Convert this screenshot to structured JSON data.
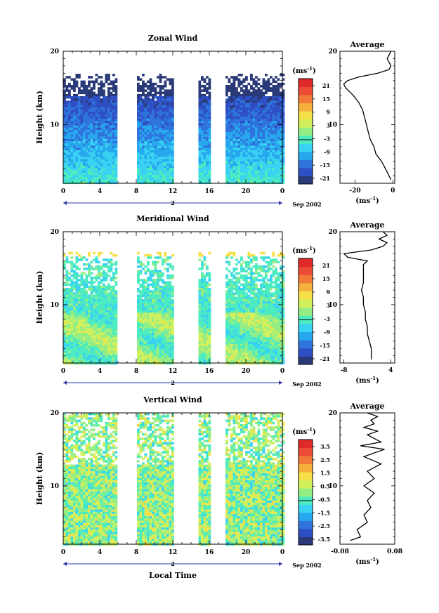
{
  "chart_data": [
    {
      "type": "heatmap",
      "title": "Zonal Wind",
      "ylabel": "Height (km)",
      "xlabel": "",
      "date_label": "Sep 2002",
      "day_marker": "2",
      "x_ticks": [
        "0",
        "4",
        "8",
        "12",
        "16",
        "20",
        "0"
      ],
      "y_ticks": [
        "10",
        "20"
      ],
      "xlim": [
        0,
        24
      ],
      "ylim": [
        2,
        20
      ],
      "colorbar": {
        "unit_base": "(ms",
        "unit_exp": "-1",
        "unit_close": ")",
        "levels": [
          "21",
          "15",
          "9",
          "3",
          "-3",
          "-9",
          "-15",
          "-21"
        ],
        "range": [
          -24,
          24
        ]
      },
      "average": {
        "title": "Average",
        "xlabel_base": "(ms",
        "xlabel_exp": "-1",
        "xlabel_close": ")",
        "x_ticks": [
          "-20",
          "0"
        ],
        "xlim": [
          -28,
          1
        ],
        "heights": [
          2.5,
          3,
          4,
          5,
          6,
          7,
          8,
          9,
          10,
          11,
          12,
          13,
          14,
          15,
          15.5,
          16,
          16.5,
          17,
          17.5,
          18,
          18.5,
          19,
          19.5,
          20
        ],
        "values": [
          -1,
          -2,
          -4,
          -6,
          -9,
          -10,
          -12,
          -13,
          -14,
          -15,
          -16,
          -18,
          -21,
          -25,
          -26,
          -24,
          -18,
          -8,
          -2,
          -1,
          -2,
          -3,
          -2,
          -1
        ]
      }
    },
    {
      "type": "heatmap",
      "title": "Meridional Wind",
      "ylabel": "Height (km)",
      "xlabel": "",
      "date_label": "Sep 2002",
      "day_marker": "2",
      "x_ticks": [
        "0",
        "4",
        "8",
        "12",
        "16",
        "20",
        "0"
      ],
      "y_ticks": [
        "10",
        "20"
      ],
      "xlim": [
        0,
        24
      ],
      "ylim": [
        2,
        20
      ],
      "colorbar": {
        "unit_base": "(ms",
        "unit_exp": "-1",
        "unit_close": ")",
        "levels": [
          "21",
          "15",
          "9",
          "3",
          "-3",
          "-9",
          "-15",
          "-21"
        ],
        "range": [
          -24,
          24
        ]
      },
      "average": {
        "title": "Average",
        "xlabel_base": "(ms",
        "xlabel_exp": "-1",
        "xlabel_close": ")",
        "x_ticks": [
          "-8",
          "4"
        ],
        "xlim": [
          -9,
          5
        ],
        "heights": [
          2.5,
          3,
          4,
          5,
          6,
          7,
          8,
          9,
          10,
          11,
          12,
          13,
          14,
          15,
          15.5,
          16,
          16.5,
          17,
          17.5,
          18,
          18.5,
          19,
          19.5,
          20
        ],
        "values": [
          -1,
          -1,
          -1,
          -1.5,
          -2,
          -2,
          -2.5,
          -2.5,
          -3,
          -3,
          -3.5,
          -3,
          -3,
          -3,
          -3,
          -2,
          -7,
          -8,
          -1,
          2,
          3,
          1,
          3,
          2
        ]
      }
    },
    {
      "type": "heatmap",
      "title": "Vertical Wind",
      "ylabel": "Height (km)",
      "xlabel": "Local Time",
      "date_label": "Sep 2002",
      "day_marker": "2",
      "x_ticks": [
        "0",
        "4",
        "8",
        "12",
        "16",
        "20",
        "0"
      ],
      "y_ticks": [
        "10",
        "20"
      ],
      "xlim": [
        0,
        24
      ],
      "ylim": [
        2,
        20
      ],
      "colorbar": {
        "unit_base": "(ms",
        "unit_exp": "-1",
        "unit_close": ")",
        "levels": [
          "3.5",
          "2.5",
          "1.5",
          "0.5",
          "-0.5",
          "-1.5",
          "-2.5",
          "-3.5"
        ],
        "range": [
          -4,
          4
        ]
      },
      "average": {
        "title": "Average",
        "xlabel_base": "(ms",
        "xlabel_exp": "-1",
        "xlabel_close": ")",
        "x_ticks": [
          "-0.08",
          "0.08"
        ],
        "xlim": [
          -0.08,
          0.08
        ],
        "heights": [
          2.5,
          3,
          4,
          5,
          6,
          7,
          8,
          9,
          10,
          11,
          12,
          13,
          14,
          15,
          15.5,
          16,
          16.5,
          17,
          17.5,
          18,
          18.5,
          19,
          19.5,
          20
        ],
        "values": [
          -0.05,
          -0.02,
          -0.03,
          0.0,
          -0.01,
          0.01,
          0.0,
          0.02,
          -0.01,
          0.02,
          0.0,
          0.04,
          -0.01,
          0.05,
          -0.02,
          0.04,
          0.02,
          0.0,
          0.03,
          -0.01,
          0.02,
          0.01,
          0.03,
          0.0
        ]
      }
    }
  ],
  "colors": {
    "scale": [
      "#2a3a78",
      "#2e4ec4",
      "#2f74dc",
      "#27a8ee",
      "#3ad2f2",
      "#4cecc0",
      "#95ee84",
      "#d2f05c",
      "#f6e04a",
      "#f6b03e",
      "#f27a38",
      "#ec4c36",
      "#e02a2a"
    ]
  }
}
